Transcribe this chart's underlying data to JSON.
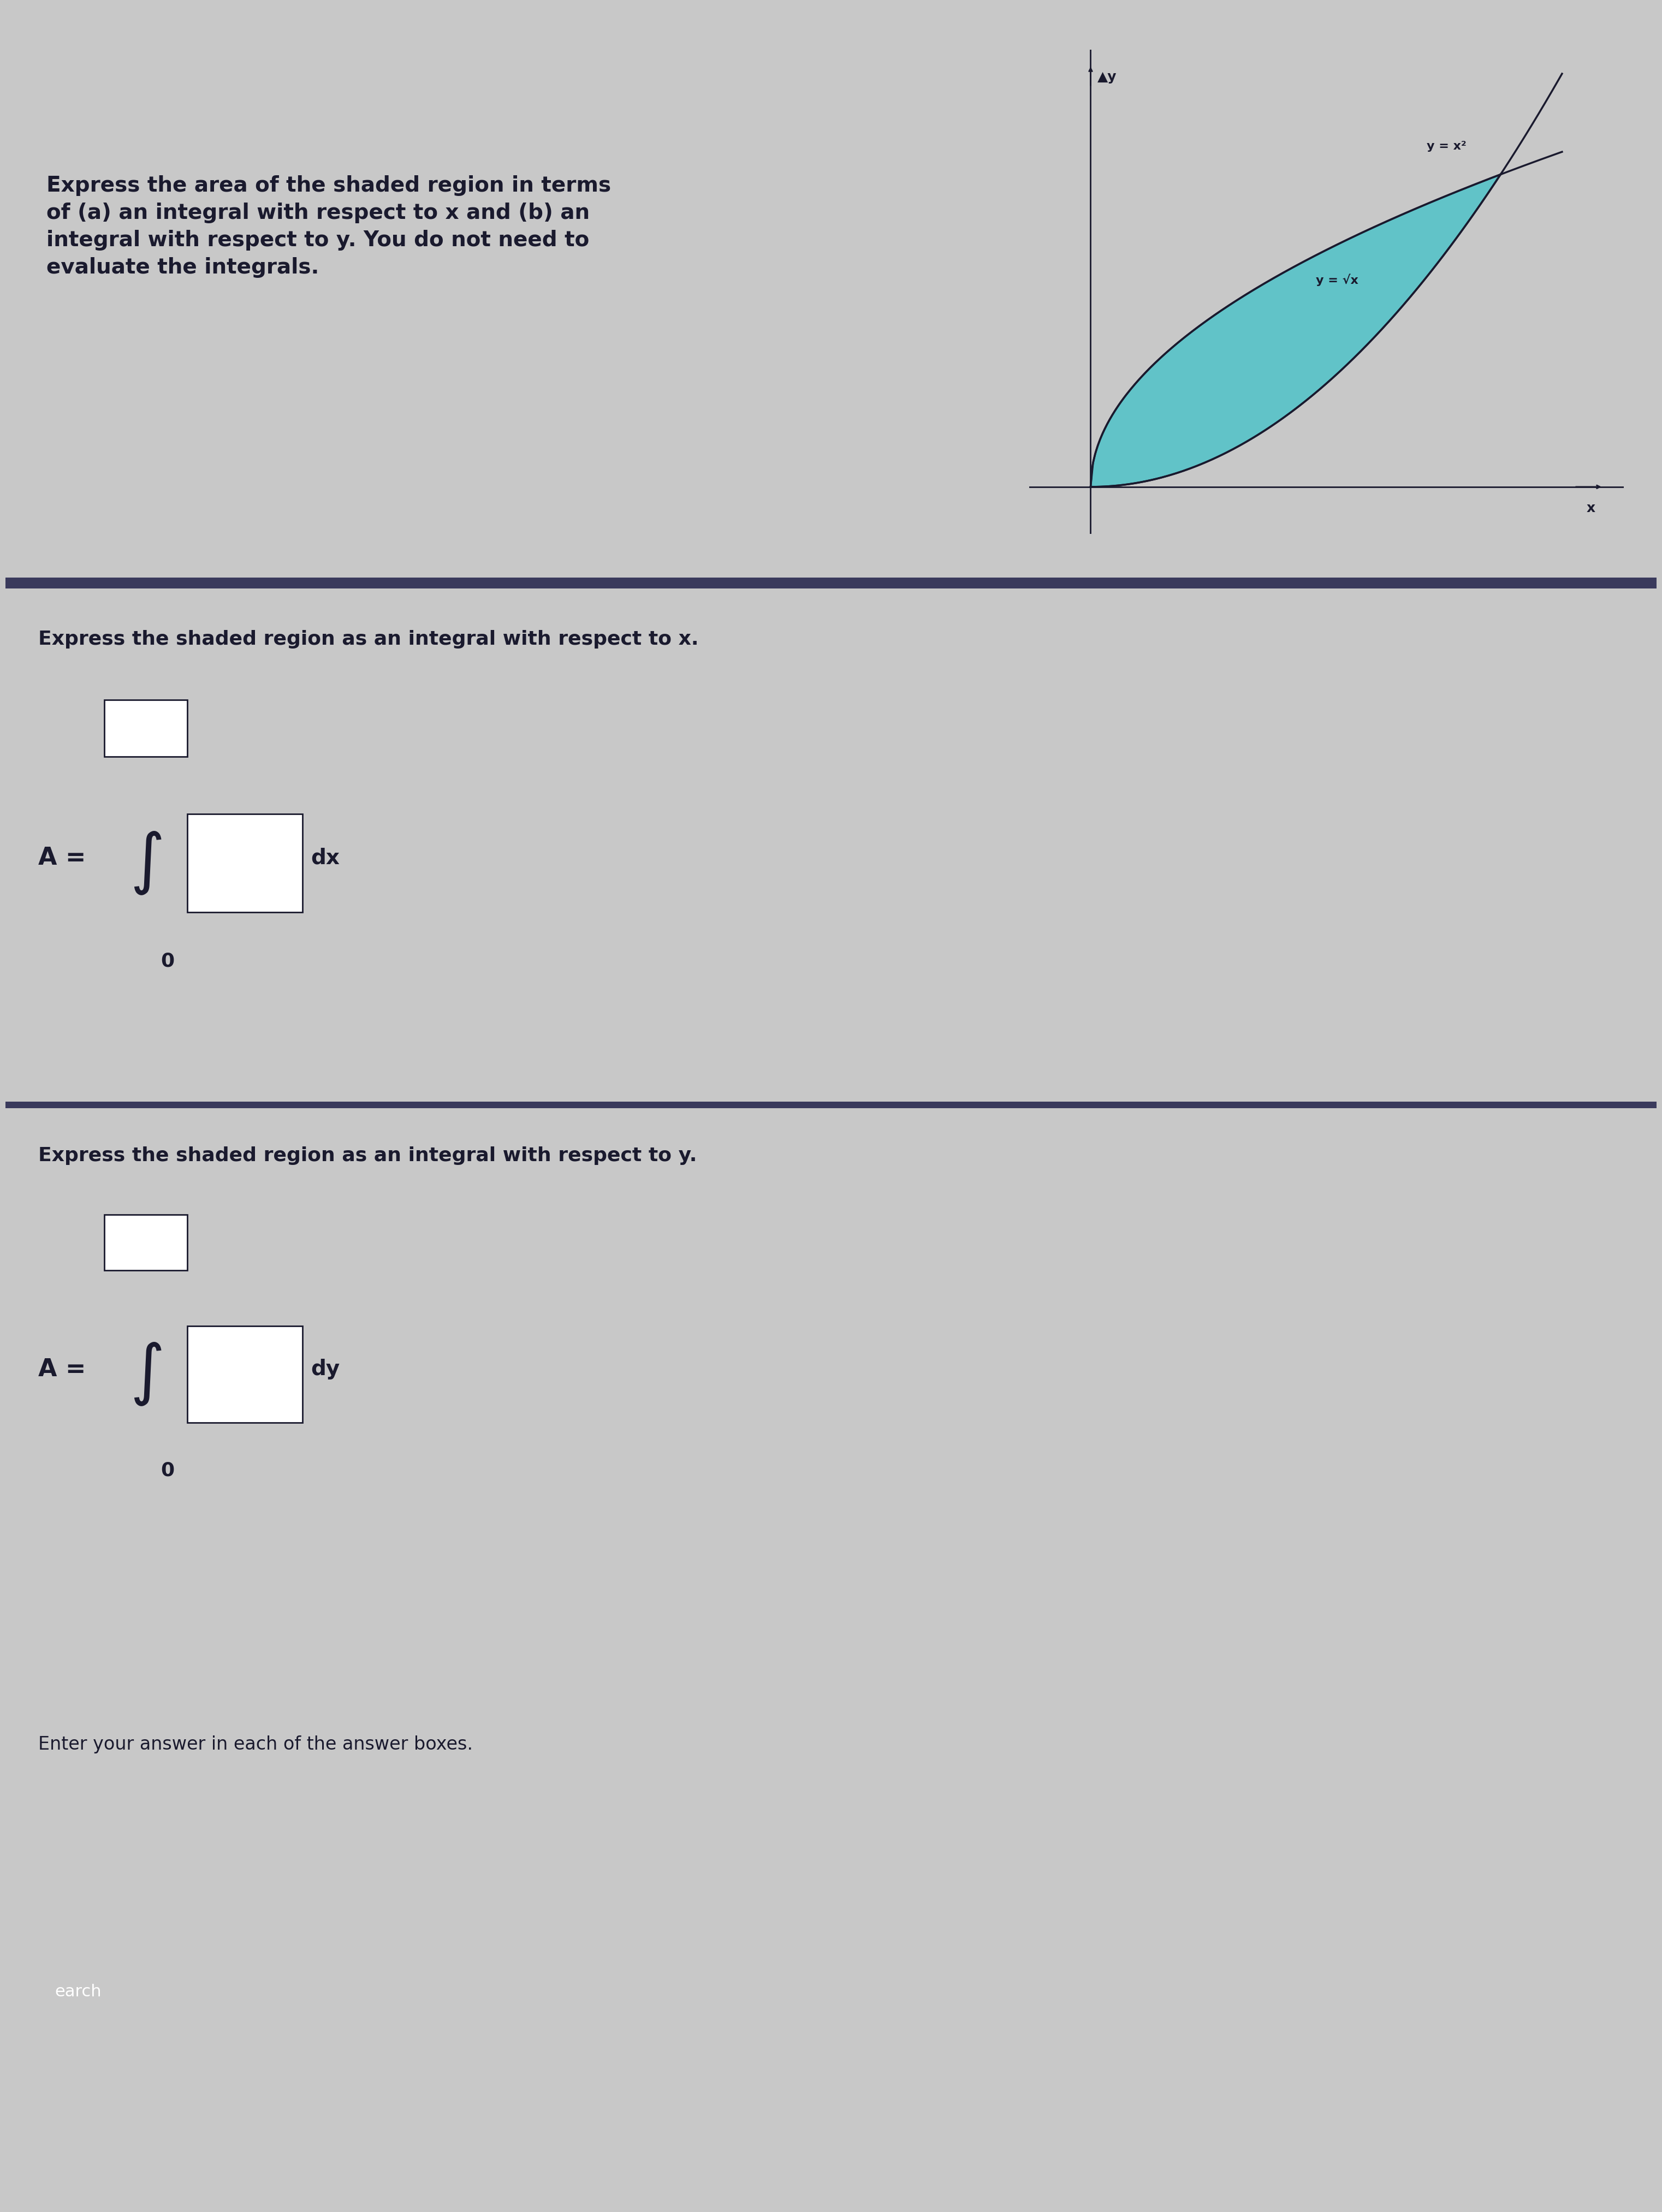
{
  "bg_color": "#c8c8c8",
  "bg_color_bottom": "#b8b8b8",
  "text_color": "#1a1a2e",
  "title_text": "Express the area of the shaded region in terms\nof (a) an integral with respect to x and (b) an\nintegral with respect to y. You do not need to\nevaluate the integrals.",
  "section1_text": "Express the shaded region as an integral with respect to x.",
  "section2_text": "Express the shaded region as an integral with respect to y.",
  "integral_x_text": "A =",
  "integral_y_text": "A =",
  "dx_text": "dx",
  "dy_text": "dy",
  "zero_label": "0",
  "footer_text": "Enter your answer in each of the answer boxes.",
  "curve1_label": "y = √x",
  "curve2_label": "y = x²",
  "axis_y_label": "▲y",
  "axis_x_label": "x",
  "shaded_color": "#4fc3c8",
  "curve_color": "#1a1a2e",
  "axis_color": "#1a1a2e",
  "line_color": "#3a3a5c",
  "fig_width": 30.24,
  "fig_height": 40.32
}
